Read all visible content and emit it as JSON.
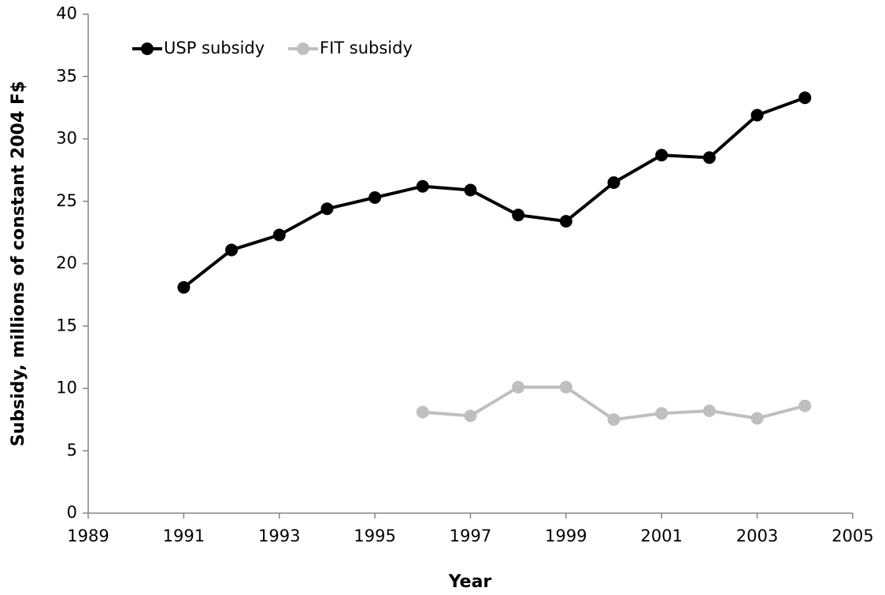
{
  "chart_data": {
    "type": "line",
    "x": [
      1991,
      1992,
      1993,
      1994,
      1995,
      1996,
      1997,
      1998,
      1999,
      2000,
      2001,
      2002,
      2003,
      2004
    ],
    "series": [
      {
        "name": "USP subsidy",
        "color": "#000000",
        "values": [
          18.1,
          21.1,
          22.3,
          24.4,
          25.3,
          26.2,
          25.9,
          23.9,
          23.4,
          26.5,
          28.7,
          28.5,
          31.9,
          33.3
        ]
      },
      {
        "name": "FIT subsidy",
        "color": "#bfbfbf",
        "values": [
          null,
          null,
          null,
          null,
          null,
          8.1,
          7.8,
          10.1,
          10.1,
          7.5,
          8.0,
          8.2,
          7.6,
          8.6
        ]
      }
    ],
    "xlabel": "Year",
    "ylabel": "Subsidy, millions of constant 2004 F$",
    "xlim": [
      1989,
      2005
    ],
    "xticks": [
      1989,
      1991,
      1993,
      1995,
      1997,
      1999,
      2001,
      2003,
      2005
    ],
    "ylim": [
      0,
      40
    ],
    "yticks": [
      0,
      5,
      10,
      15,
      20,
      25,
      30,
      35,
      40
    ],
    "legend": "top-left"
  }
}
